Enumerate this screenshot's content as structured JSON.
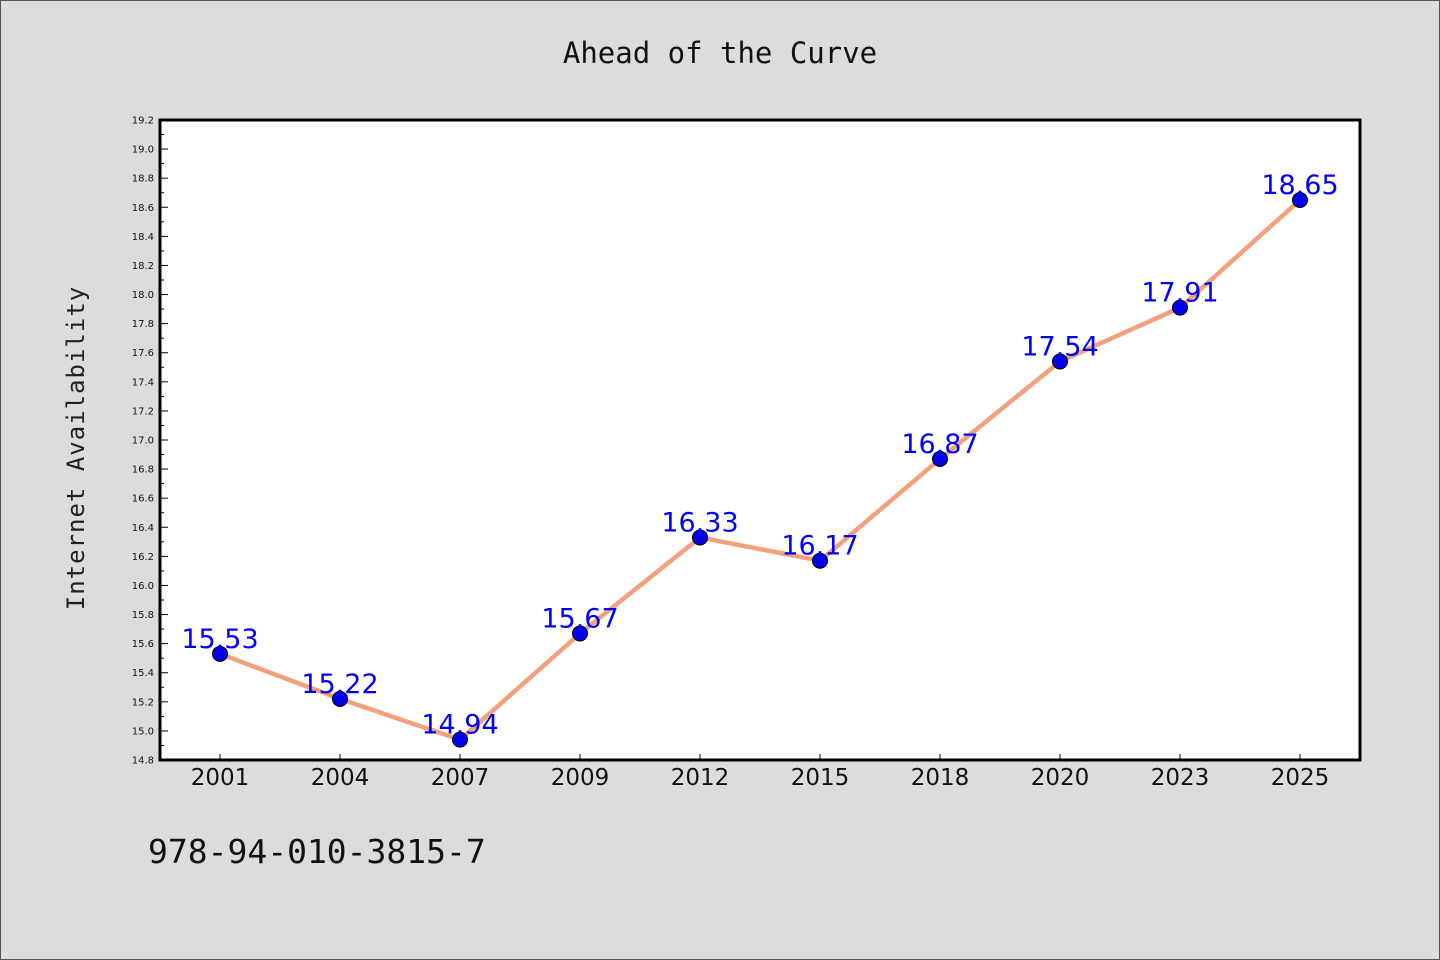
{
  "chart_data": {
    "type": "line",
    "title": "Ahead of the Curve",
    "xlabel": "",
    "ylabel": "Internet Availability",
    "categories": [
      "2001",
      "2004",
      "2007",
      "2009",
      "2012",
      "2015",
      "2018",
      "2020",
      "2023",
      "2025"
    ],
    "series": [
      {
        "values": [
          15.53,
          15.22,
          14.94,
          15.67,
          16.33,
          16.17,
          16.87,
          17.54,
          17.91,
          18.65
        ],
        "labels": [
          "15.53",
          "15.22",
          "14.94",
          "15.67",
          "16.33",
          "16.17",
          "16.87",
          "17.54",
          "17.91",
          "18.65"
        ],
        "line_color": "#f4a07c",
        "marker_color": "#0000ee"
      }
    ],
    "ylim": [
      14.8,
      19.2
    ],
    "yticks": [
      "14.8",
      "15.0",
      "15.2",
      "15.4",
      "15.6",
      "15.8",
      "16.0",
      "16.2",
      "16.4",
      "16.6",
      "16.8",
      "17.0",
      "17.2",
      "17.4",
      "17.6",
      "17.8",
      "18.0",
      "18.2",
      "18.4",
      "18.6",
      "18.8",
      "19.0",
      "19.2"
    ],
    "grid": false,
    "label_color": "#0000ff"
  },
  "footer": {
    "isbn": "978-94-010-3815-7"
  }
}
